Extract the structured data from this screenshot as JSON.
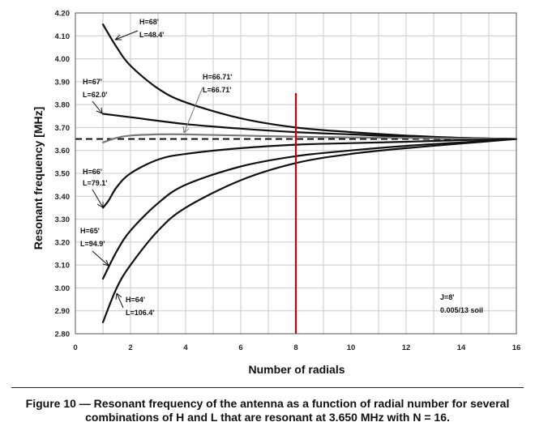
{
  "chart_data": {
    "type": "line",
    "title": "",
    "xlabel": "Number of radials",
    "ylabel": "Resonant frequency [MHz]",
    "xlim": [
      0,
      16
    ],
    "ylim": [
      2.8,
      4.2
    ],
    "x_ticks": [
      0,
      2,
      4,
      6,
      8,
      10,
      12,
      14,
      16
    ],
    "y_ticks": [
      2.8,
      2.9,
      3.0,
      3.1,
      3.2,
      3.3,
      3.4,
      3.5,
      3.6,
      3.7,
      3.8,
      3.9,
      4.0,
      4.1,
      4.2
    ],
    "grid": true,
    "reference_line": {
      "y": 3.65,
      "style": "dashed",
      "color": "#000000"
    },
    "vertical_marker": {
      "x": 8,
      "y_top": 3.85,
      "color": "#cc0000"
    },
    "series": [
      {
        "labels": [
          "H=68'",
          "L=48.4'"
        ],
        "color": "#111111",
        "x": [
          1,
          1.5,
          2,
          3,
          4,
          6,
          8,
          10,
          12,
          14,
          16
        ],
        "y": [
          4.15,
          4.05,
          3.97,
          3.87,
          3.81,
          3.74,
          3.7,
          3.68,
          3.665,
          3.655,
          3.65
        ]
      },
      {
        "labels": [
          "H=67'",
          "L=62.0'"
        ],
        "color": "#111111",
        "x": [
          1,
          2,
          4,
          6,
          8,
          10,
          12,
          14,
          16
        ],
        "y": [
          3.76,
          3.745,
          3.715,
          3.695,
          3.68,
          3.67,
          3.66,
          3.655,
          3.65
        ]
      },
      {
        "labels": [
          "H=66.71'",
          "L=66.71'"
        ],
        "color": "#7a7a7a",
        "x": [
          1,
          1.5,
          2,
          3,
          4,
          6,
          8,
          10,
          12,
          14,
          16
        ],
        "y": [
          3.635,
          3.655,
          3.665,
          3.67,
          3.67,
          3.665,
          3.66,
          3.657,
          3.655,
          3.652,
          3.65
        ]
      },
      {
        "labels": [
          "H=66'",
          "L=79.1'"
        ],
        "color": "#111111",
        "x": [
          1,
          1.2,
          1.5,
          2,
          3,
          4,
          6,
          8,
          10,
          12,
          14,
          16
        ],
        "y": [
          3.35,
          3.38,
          3.44,
          3.5,
          3.56,
          3.585,
          3.61,
          3.625,
          3.632,
          3.638,
          3.645,
          3.65
        ]
      },
      {
        "labels": [
          "H=65'",
          "L=94.9'"
        ],
        "color": "#111111",
        "x": [
          1,
          1.5,
          2,
          3,
          4,
          6,
          8,
          10,
          12,
          14,
          16
        ],
        "y": [
          3.04,
          3.16,
          3.25,
          3.37,
          3.45,
          3.53,
          3.575,
          3.6,
          3.62,
          3.635,
          3.65
        ]
      },
      {
        "labels": [
          "H=64'",
          "L=106.4'"
        ],
        "color": "#111111",
        "x": [
          1,
          1.5,
          2,
          3,
          4,
          6,
          8,
          10,
          12,
          14,
          16
        ],
        "y": [
          2.85,
          3.0,
          3.1,
          3.25,
          3.35,
          3.47,
          3.545,
          3.585,
          3.61,
          3.63,
          3.65
        ]
      }
    ],
    "note_lines": [
      "J=8'",
      "0.005/13 soil"
    ]
  },
  "caption_lines": [
    "Figure 10 — Resonant frequency of the antenna as a function of radial number for several",
    "combinations of H and L that are resonant at 3.650 MHz with N = 16."
  ]
}
